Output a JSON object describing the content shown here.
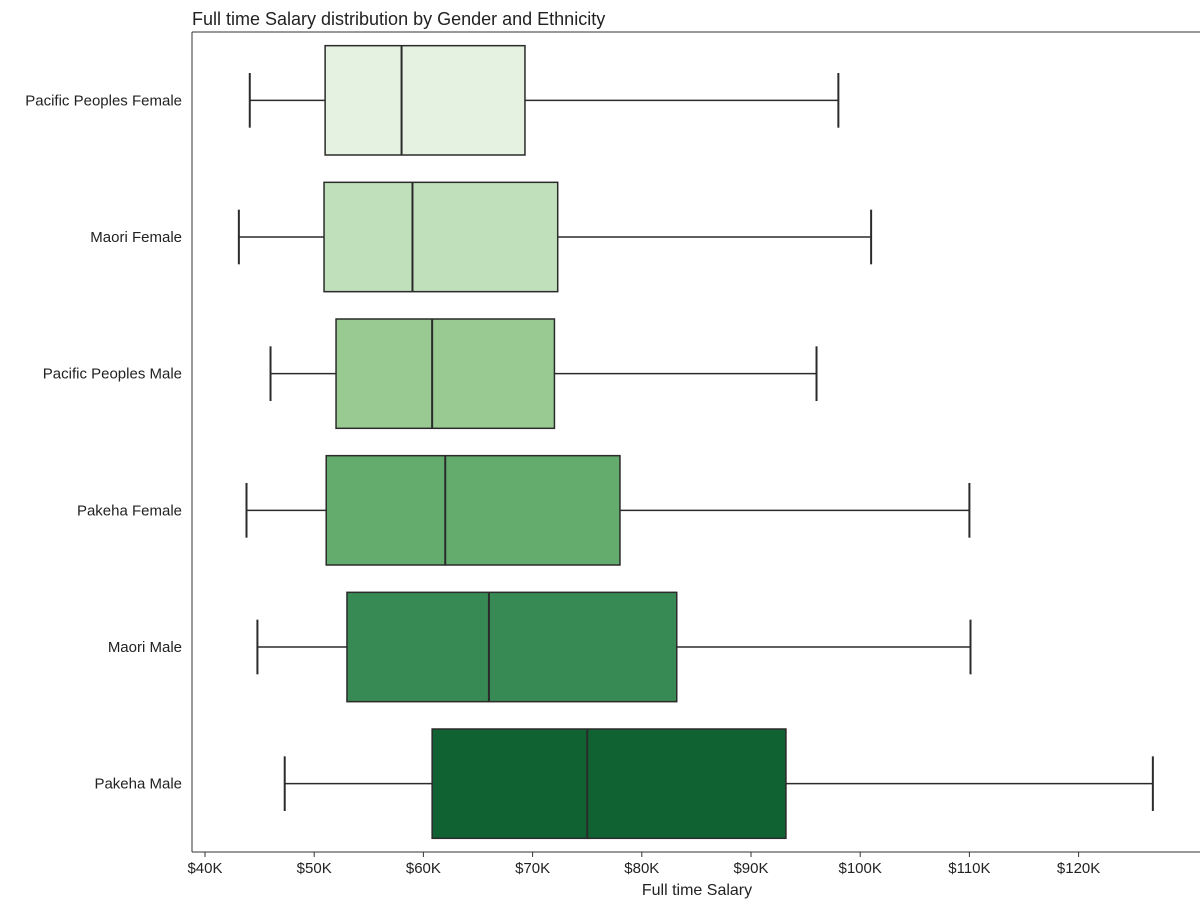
{
  "chart_data": {
    "type": "boxplot",
    "orientation": "horizontal",
    "title": "Full time Salary distribution by Gender and Ethnicity",
    "xlabel": "Full time Salary",
    "ylabel": "",
    "xlim": [
      40000,
      128500
    ],
    "xticks": [
      40000,
      50000,
      60000,
      70000,
      80000,
      90000,
      100000,
      110000,
      120000
    ],
    "xtick_labels": [
      "$40K",
      "$50K",
      "$60K",
      "$70K",
      "$80K",
      "$90K",
      "$100K",
      "$110K",
      "$120K"
    ],
    "grid": false,
    "categories": [
      "Pacific Peoples Female",
      "Maori Female",
      "Pacific Peoples Male",
      "Pakeha Female",
      "Maori Male",
      "Pakeha Male"
    ],
    "boxes": [
      {
        "category": "Pacific Peoples Female",
        "min": 44100,
        "q1": 51000,
        "median": 58000,
        "q3": 69300,
        "max": 98000,
        "color": "#e5f1e1"
      },
      {
        "category": "Maori Female",
        "min": 43100,
        "q1": 50900,
        "median": 59000,
        "q3": 72300,
        "max": 101000,
        "color": "#c0e0bb"
      },
      {
        "category": "Pacific Peoples Male",
        "min": 46000,
        "q1": 52000,
        "median": 60800,
        "q3": 72000,
        "max": 96000,
        "color": "#98ca92"
      },
      {
        "category": "Pakeha Female",
        "min": 43800,
        "q1": 51100,
        "median": 62000,
        "q3": 78000,
        "max": 110000,
        "color": "#64ab6e"
      },
      {
        "category": "Maori Male",
        "min": 44800,
        "q1": 53000,
        "median": 66000,
        "q3": 83200,
        "max": 110100,
        "color": "#388a54"
      },
      {
        "category": "Pakeha Male",
        "min": 47300,
        "q1": 60800,
        "median": 75000,
        "q3": 93200,
        "max": 126800,
        "color": "#106233"
      }
    ]
  }
}
